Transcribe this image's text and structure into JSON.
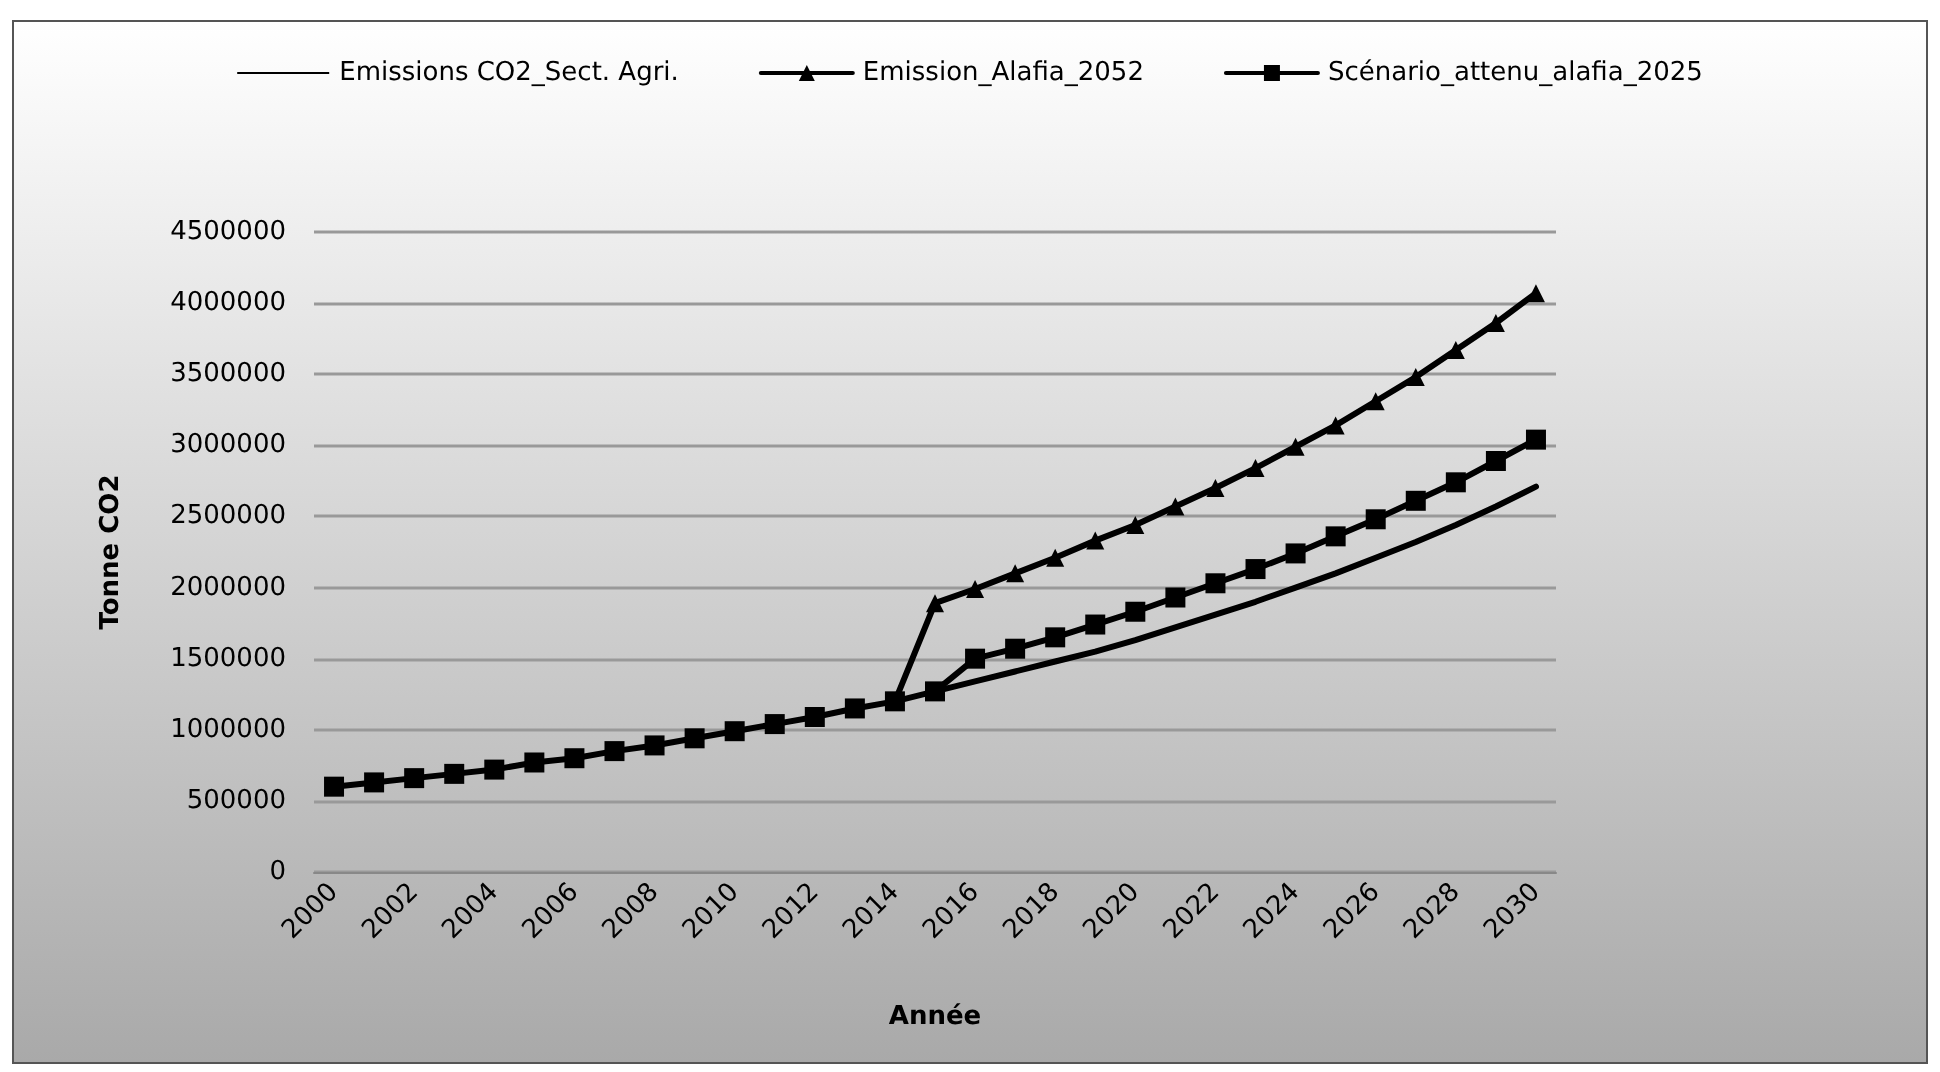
{
  "chart_data": {
    "type": "line",
    "xlabel": "Année",
    "ylabel": "Tonne CO2",
    "categories": [
      "2000",
      null,
      "2002",
      null,
      "2004",
      null,
      "2006",
      null,
      "2008",
      null,
      "2010",
      null,
      "2012",
      null,
      "2014",
      null,
      "2016",
      null,
      "2018",
      null,
      "2020",
      null,
      "2022",
      null,
      "2024",
      null,
      "2026",
      null,
      "2028",
      null,
      "2030"
    ],
    "series": [
      {
        "name": "Emissions CO2_Sect. Agri.",
        "color": "#000000",
        "marker": "none",
        "values": [
          null,
          null,
          null,
          null,
          null,
          null,
          null,
          null,
          null,
          null,
          null,
          null,
          null,
          null,
          null,
          1270000,
          1340000,
          1410000,
          1480000,
          1550000,
          1630000,
          1720000,
          1810000,
          1900000,
          2000000,
          2100000,
          2210000,
          2320000,
          2440000,
          2570000,
          2710000
        ]
      },
      {
        "name": "Emission_Alafia_2052",
        "color": "#000000",
        "marker": "triangle",
        "values": [
          null,
          null,
          null,
          null,
          null,
          null,
          null,
          null,
          null,
          null,
          null,
          null,
          null,
          null,
          1200000,
          1890000,
          1990000,
          2100000,
          2210000,
          2330000,
          2440000,
          2570000,
          2700000,
          2840000,
          2990000,
          3140000,
          3310000,
          3480000,
          3670000,
          3860000,
          4070000
        ]
      },
      {
        "name": "Scénario_attenu_alafia_2025",
        "color": "#000000",
        "marker": "square",
        "values": [
          600000,
          630000,
          660000,
          690000,
          720000,
          770000,
          800000,
          850000,
          890000,
          940000,
          990000,
          1040000,
          1090000,
          1150000,
          1200000,
          1270000,
          1500000,
          1570000,
          1650000,
          1740000,
          1830000,
          1930000,
          2030000,
          2130000,
          2240000,
          2360000,
          2480000,
          2610000,
          2740000,
          2890000,
          3040000
        ]
      }
    ],
    "ylim": [
      0,
      4500000
    ],
    "yticks": [
      0,
      500000,
      1000000,
      1500000,
      2000000,
      2500000,
      3000000,
      3500000,
      4000000,
      4500000
    ],
    "grid": "y",
    "legend": "top",
    "line_style": "solid"
  }
}
